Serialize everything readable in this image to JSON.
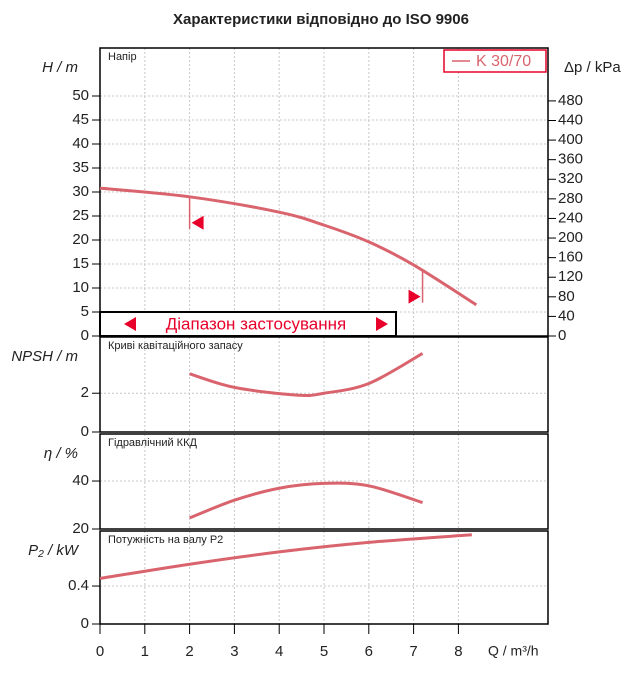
{
  "chart_data": [
    {
      "type": "line",
      "title": "Характеристики відповідно до ISO 9906",
      "panel_label": "Напір",
      "ylabel": "H / m",
      "y2label": "Δp / kPa",
      "ylim": [
        0,
        60
      ],
      "yticks": [
        0,
        5,
        10,
        15,
        20,
        25,
        30,
        35,
        40,
        45,
        50
      ],
      "y2lim": [
        0,
        588
      ],
      "y2ticks": [
        0,
        40,
        80,
        120,
        160,
        200,
        240,
        280,
        320,
        360,
        400,
        440,
        480
      ],
      "x": [
        0,
        2,
        4,
        5,
        6,
        7,
        8.4
      ],
      "series": [
        {
          "name": "K 30/70",
          "color": "#d9646e",
          "values": [
            30.8,
            29,
            25.8,
            23.1,
            19.6,
            14.8,
            6.5
          ]
        }
      ],
      "range_x": [
        2,
        7.2
      ],
      "range_label": "Діапазон застосування",
      "grid": true
    },
    {
      "type": "line",
      "panel_label": "Криві кавітаційного запасу",
      "ylabel": "NPSH / m",
      "ylim": [
        0,
        4.9
      ],
      "yticks": [
        0,
        2
      ],
      "x": [
        2,
        3,
        4.4,
        5,
        6,
        7.2
      ],
      "series": [
        {
          "name": "K 30/70",
          "color": "#d9646e",
          "values": [
            3.0,
            2.3,
            1.9,
            2.0,
            2.5,
            4.05
          ]
        }
      ],
      "grid": true
    },
    {
      "type": "line",
      "panel_label": "Гідравлічний ККД",
      "ylabel": "η / %",
      "ylim": [
        20,
        59.6
      ],
      "yticks": [
        20,
        40
      ],
      "x": [
        2,
        3,
        4,
        5,
        6,
        7.2
      ],
      "series": [
        {
          "name": "K 30/70",
          "color": "#d9646e",
          "values": [
            24.6,
            32,
            37,
            39,
            38,
            31
          ]
        }
      ],
      "grid": true
    },
    {
      "type": "line",
      "panel_label": "Потужність на валу P2",
      "ylabel": "P₂ / kW",
      "xlabel": "Q / m³/h",
      "ylim": [
        0,
        0.98
      ],
      "yticks": [
        0,
        0.4
      ],
      "xlim": [
        0,
        10
      ],
      "xticks": [
        0,
        1,
        2,
        3,
        4,
        5,
        6,
        7,
        8
      ],
      "x": [
        0,
        2,
        4,
        6,
        8.3
      ],
      "series": [
        {
          "name": "K 30/70",
          "color": "#d9646e",
          "values": [
            0.48,
            0.63,
            0.76,
            0.86,
            0.94
          ]
        }
      ],
      "grid": true
    }
  ]
}
